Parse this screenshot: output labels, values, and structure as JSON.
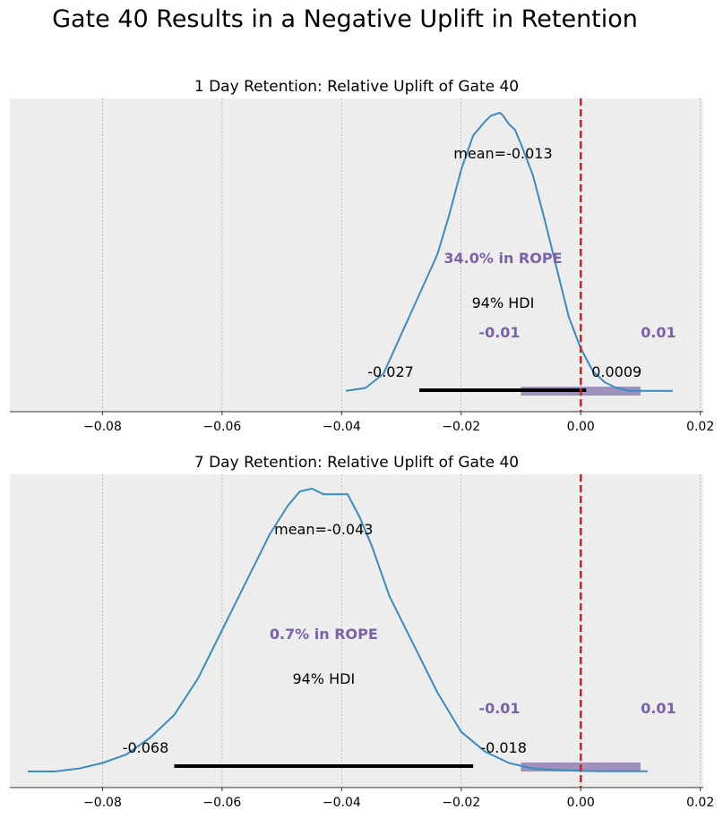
{
  "figure": {
    "title": "Gate 40 Results in a Negative Uplift in Retention"
  },
  "colors": {
    "panel_bg": "#ededed",
    "kde": "#3a8bc2",
    "hdi": "#000000",
    "rope": "#7e6aa8",
    "rope_text": "#7a62a8",
    "reference_line": "#e31a1c"
  },
  "chart_data": [
    {
      "type": "line",
      "title": "1 Day Retention: Relative Uplift of Gate 40",
      "xlim": [
        -0.0955,
        0.0205
      ],
      "xticks": [
        -0.08,
        -0.06,
        -0.04,
        -0.02,
        0.0,
        0.02
      ],
      "xtick_labels": [
        "−0.08",
        "−0.06",
        "−0.04",
        "−0.02",
        "0.00",
        "0.02"
      ],
      "grid": "vertical dotted",
      "posterior_density": {
        "x": [
          -0.0393,
          -0.036,
          -0.033,
          -0.03,
          -0.027,
          -0.024,
          -0.022,
          -0.02,
          -0.018,
          -0.016,
          -0.015,
          -0.0135,
          -0.013,
          -0.012,
          -0.011,
          -0.01,
          -0.008,
          -0.006,
          -0.004,
          -0.002,
          0.0,
          0.002,
          0.004,
          0.006,
          0.008,
          0.01,
          0.012,
          0.0154
        ],
        "y": [
          0.02,
          0.03,
          0.08,
          0.22,
          0.36,
          0.5,
          0.64,
          0.8,
          0.92,
          0.97,
          0.99,
          1.0,
          0.99,
          0.96,
          0.94,
          0.89,
          0.78,
          0.62,
          0.45,
          0.28,
          0.17,
          0.09,
          0.05,
          0.03,
          0.02,
          0.02,
          0.02,
          0.02
        ]
      },
      "mean": -0.013,
      "mean_label": "mean=-0.013",
      "hdi_prob_label": "94% HDI",
      "hdi": [
        -0.027,
        0.0009
      ],
      "hdi_labels": [
        "-0.027",
        "0.0009"
      ],
      "rope": [
        -0.01,
        0.01
      ],
      "rope_labels": [
        "-0.01",
        "0.01"
      ],
      "rope_pct_label": "34.0% in ROPE",
      "reference_value": 0.0
    },
    {
      "type": "line",
      "title": "7 Day Retention: Relative Uplift of Gate 40",
      "xlim": [
        -0.0955,
        0.0205
      ],
      "xticks": [
        -0.08,
        -0.06,
        -0.04,
        -0.02,
        0.0,
        0.02
      ],
      "xtick_labels": [
        "−0.08",
        "−0.06",
        "−0.04",
        "−0.02",
        "0.00",
        "0.02"
      ],
      "grid": "vertical dotted",
      "posterior_density": {
        "x": [
          -0.0925,
          -0.088,
          -0.084,
          -0.08,
          -0.076,
          -0.072,
          -0.068,
          -0.064,
          -0.06,
          -0.056,
          -0.052,
          -0.049,
          -0.047,
          -0.045,
          -0.043,
          -0.041,
          -0.039,
          -0.037,
          -0.035,
          -0.032,
          -0.028,
          -0.024,
          -0.02,
          -0.016,
          -0.012,
          -0.008,
          -0.004,
          0.0,
          0.004,
          0.008,
          0.0112
        ],
        "y": [
          0.0,
          0.0,
          0.01,
          0.03,
          0.06,
          0.12,
          0.2,
          0.33,
          0.5,
          0.67,
          0.84,
          0.94,
          0.99,
          1.0,
          0.98,
          0.98,
          0.98,
          0.9,
          0.8,
          0.62,
          0.45,
          0.28,
          0.14,
          0.07,
          0.03,
          0.01,
          0.005,
          0.002,
          0.001,
          0.001,
          0.001
        ]
      },
      "mean": -0.043,
      "mean_label": "mean=-0.043",
      "hdi_prob_label": "94% HDI",
      "hdi": [
        -0.068,
        -0.018
      ],
      "hdi_labels": [
        "-0.068",
        "-0.018"
      ],
      "rope": [
        -0.01,
        0.01
      ],
      "rope_labels": [
        "-0.01",
        "0.01"
      ],
      "rope_pct_label": "0.7% in ROPE",
      "reference_value": 0.0
    }
  ]
}
